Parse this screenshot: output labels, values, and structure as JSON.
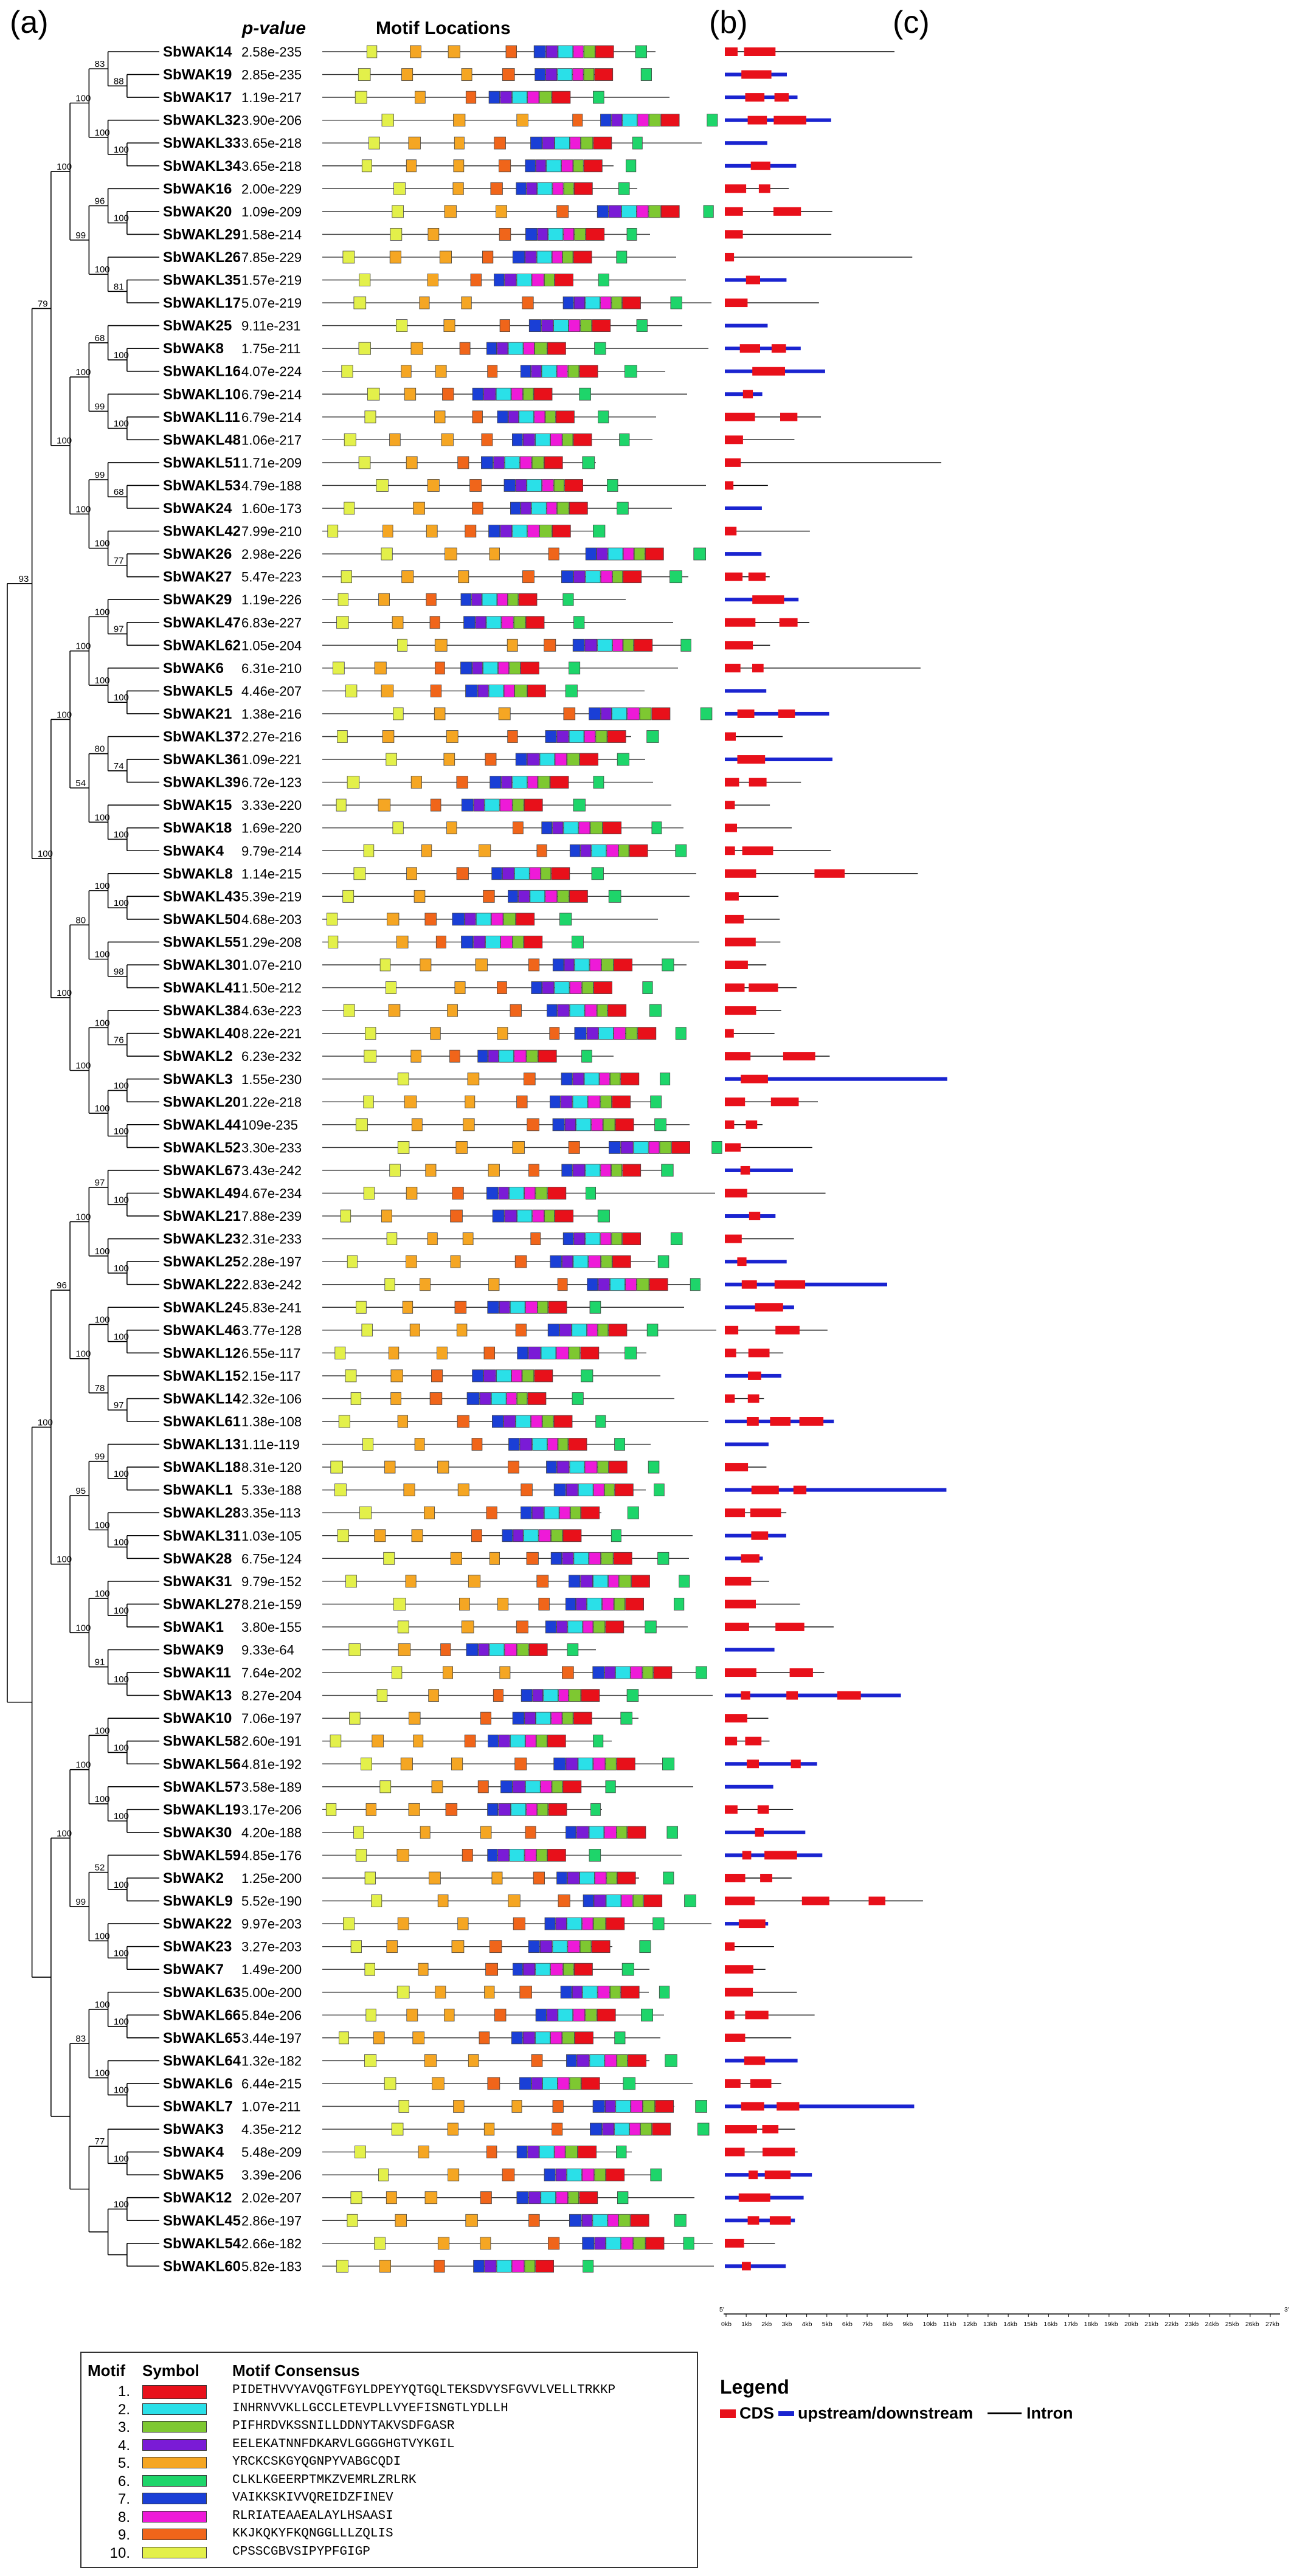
{
  "panel_labels": {
    "a": "(a)",
    "b": "(b)",
    "c": "(c)"
  },
  "headers": {
    "pvalue": "p-value",
    "motif_locations": "Motif Locations"
  },
  "colors": {
    "motifs": [
      "#e8101a",
      "#2ae0e8",
      "#7ec831",
      "#7a1bd6",
      "#f5a623",
      "#1ed56a",
      "#1a3fd6",
      "#ee1ad8",
      "#f0651a",
      "#e3f04a"
    ],
    "cds": "#e8101a",
    "utr": "#1a24d0",
    "intron": "#000000"
  },
  "genes": [
    {
      "name": "SbWAK14",
      "p": "2.58e-235"
    },
    {
      "name": "SbWAK19",
      "p": "2.85e-235"
    },
    {
      "name": "SbWAK17",
      "p": "1.19e-217"
    },
    {
      "name": "SbWAKL32",
      "p": "3.90e-206"
    },
    {
      "name": "SbWAKL33",
      "p": "3.65e-218"
    },
    {
      "name": "SbWAKL34",
      "p": "3.65e-218"
    },
    {
      "name": "SbWAK16",
      "p": "2.00e-229"
    },
    {
      "name": "SbWAK20",
      "p": "1.09e-209"
    },
    {
      "name": "SbWAKL29",
      "p": "1.58e-214"
    },
    {
      "name": "SbWAKL26",
      "p": "7.85e-229"
    },
    {
      "name": "SbWAKL35",
      "p": "1.57e-219"
    },
    {
      "name": "SbWAKL17",
      "p": "5.07e-219"
    },
    {
      "name": "SbWAK25",
      "p": "9.11e-231"
    },
    {
      "name": "SbWAK8",
      "p": "1.75e-211"
    },
    {
      "name": "SbWAKL16",
      "p": "4.07e-224"
    },
    {
      "name": "SbWAKL10",
      "p": "6.79e-214"
    },
    {
      "name": "SbWAKL11",
      "p": "6.79e-214"
    },
    {
      "name": "SbWAKL48",
      "p": "1.06e-217"
    },
    {
      "name": "SbWAKL51",
      "p": "1.71e-209"
    },
    {
      "name": "SbWAKL53",
      "p": "4.79e-188"
    },
    {
      "name": "SbWAK24",
      "p": "1.60e-173"
    },
    {
      "name": "SbWAKL42",
      "p": "7.99e-210"
    },
    {
      "name": "SbWAK26",
      "p": "2.98e-226"
    },
    {
      "name": "SbWAK27",
      "p": "5.47e-223"
    },
    {
      "name": "SbWAK29",
      "p": "1.19e-226"
    },
    {
      "name": "SbWAKL47",
      "p": "6.83e-227"
    },
    {
      "name": "SbWAKL62",
      "p": "1.05e-204"
    },
    {
      "name": "SbWAK6",
      "p": "6.31e-210"
    },
    {
      "name": "SbWAKL5",
      "p": "4.46e-207"
    },
    {
      "name": "SbWAK21",
      "p": "1.38e-216"
    },
    {
      "name": "SbWAKL37",
      "p": "2.27e-216"
    },
    {
      "name": "SbWAKL36",
      "p": "1.09e-221"
    },
    {
      "name": "SbWAKL39",
      "p": "6.72e-123"
    },
    {
      "name": "SbWAK15",
      "p": "3.33e-220"
    },
    {
      "name": "SbWAK18",
      "p": "1.69e-220"
    },
    {
      "name": "SbWAK4",
      "p": "9.79e-214"
    },
    {
      "name": "SbWAKL8",
      "p": "1.14e-215"
    },
    {
      "name": "SbWAKL43",
      "p": "5.39e-219"
    },
    {
      "name": "SbWAKL50",
      "p": "4.68e-203"
    },
    {
      "name": "SbWAKL55",
      "p": "1.29e-208"
    },
    {
      "name": "SbWAKL30",
      "p": "1.07e-210"
    },
    {
      "name": "SbWAKL41",
      "p": "1.50e-212"
    },
    {
      "name": "SbWAKL38",
      "p": "4.63e-223"
    },
    {
      "name": "SbWAKL40",
      "p": "8.22e-221"
    },
    {
      "name": "SbWAKL2",
      "p": "6.23e-232"
    },
    {
      "name": "SbWAKL3",
      "p": "1.55e-230"
    },
    {
      "name": "SbWAKL20",
      "p": "1.22e-218"
    },
    {
      "name": "SbWAKL44",
      "p": "109e-235"
    },
    {
      "name": "SbWAKL52",
      "p": "3.30e-233"
    },
    {
      "name": "SbWAKL67",
      "p": "3.43e-242"
    },
    {
      "name": "SbWAKL49",
      "p": "4.67e-234"
    },
    {
      "name": "SbWAKL21",
      "p": "7.88e-239"
    },
    {
      "name": "SbWAKL23",
      "p": "2.31e-233"
    },
    {
      "name": "SbWAKL25",
      "p": "2.28e-197"
    },
    {
      "name": "SbWAKL22",
      "p": "2.83e-242"
    },
    {
      "name": "SbWAKL24",
      "p": "5.83e-241"
    },
    {
      "name": "SbWAKL46",
      "p": "3.77e-128"
    },
    {
      "name": "SbWAKL12",
      "p": "6.55e-117"
    },
    {
      "name": "SbWAKL15",
      "p": "2.15e-117"
    },
    {
      "name": "SbWAKL14",
      "p": "2.32e-106"
    },
    {
      "name": "SbWAKL61",
      "p": "1.38e-108"
    },
    {
      "name": "SbWAKL13",
      "p": "1.11e-119"
    },
    {
      "name": "SbWAKL18",
      "p": "8.31e-120"
    },
    {
      "name": "SbWAKL1",
      "p": "5.33e-188"
    },
    {
      "name": "SbWAKL28",
      "p": "3.35e-113"
    },
    {
      "name": "SbWAKL31",
      "p": "1.03e-105"
    },
    {
      "name": "SbWAK28",
      "p": "6.75e-124"
    },
    {
      "name": "SbWAK31",
      "p": "9.79e-152"
    },
    {
      "name": "SbWAKL27",
      "p": "8.21e-159"
    },
    {
      "name": "SbWAK1",
      "p": "3.80e-155"
    },
    {
      "name": "SbWAK9",
      "p": "9.33e-64"
    },
    {
      "name": "SbWAK11",
      "p": "7.64e-202"
    },
    {
      "name": "SbWAK13",
      "p": "8.27e-204"
    },
    {
      "name": "SbWAK10",
      "p": "7.06e-197"
    },
    {
      "name": "SbWAKL58",
      "p": "2.60e-191"
    },
    {
      "name": "SbWAKL56",
      "p": "4.81e-192"
    },
    {
      "name": "SbWAKL57",
      "p": "3.58e-189"
    },
    {
      "name": "SbWAKL19",
      "p": "3.17e-206"
    },
    {
      "name": "SbWAK30",
      "p": "4.20e-188"
    },
    {
      "name": "SbWAKL59",
      "p": "4.85e-176"
    },
    {
      "name": "SbWAK2",
      "p": "1.25e-200"
    },
    {
      "name": "SbWAKL9",
      "p": "5.52e-190"
    },
    {
      "name": "SbWAK22",
      "p": "9.97e-203"
    },
    {
      "name": "SbWAK23",
      "p": "3.27e-203"
    },
    {
      "name": "SbWAK7",
      "p": "1.49e-200"
    },
    {
      "name": "SbWAKL63",
      "p": "5.00e-200"
    },
    {
      "name": "SbWAKL66",
      "p": "5.84e-206"
    },
    {
      "name": "SbWAKL65",
      "p": "3.44e-197"
    },
    {
      "name": "SbWAKL64",
      "p": "1.32e-182"
    },
    {
      "name": "SbWAKL6",
      "p": "6.44e-215"
    },
    {
      "name": "SbWAKL7",
      "p": "1.07e-211"
    },
    {
      "name": "SbWAK3",
      "p": "4.35e-212"
    },
    {
      "name": "SbWAK4",
      "p": "5.48e-209"
    },
    {
      "name": "SbWAK5",
      "p": "3.39e-206"
    },
    {
      "name": "SbWAK12",
      "p": "2.02e-207"
    },
    {
      "name": "SbWAKL45",
      "p": "2.86e-197"
    },
    {
      "name": "SbWAKL54",
      "p": "2.66e-182"
    },
    {
      "name": "SbWAKL60",
      "p": "5.82e-183"
    }
  ],
  "bootstrap_values": [
    "88",
    "83",
    "100",
    "100",
    "100",
    "100",
    "96",
    "81",
    "100",
    "99",
    "100",
    "100",
    "68",
    "100",
    "99",
    "100",
    "68",
    "99",
    "77",
    "100",
    "100",
    "100",
    "79",
    "97",
    "100",
    "100",
    "100",
    "100",
    "74",
    "80",
    "100",
    "100",
    "54",
    "100",
    "100",
    "100",
    "98",
    "100",
    "80",
    "76",
    "100",
    "100",
    "100",
    "100",
    "100",
    "100",
    "100",
    "93",
    "100",
    "97",
    "100",
    "100",
    "100",
    "100",
    "100",
    "97",
    "78",
    "100",
    "96",
    "100",
    "99",
    "100",
    "100",
    "95",
    "100",
    "100",
    "100",
    "91",
    "100",
    "100",
    "100",
    "100",
    "100",
    "100",
    "100",
    "100",
    "100",
    "52",
    "100",
    "100",
    "99",
    "100",
    "100",
    "100",
    "100",
    "100",
    "83",
    "100",
    "77",
    "100"
  ],
  "scale": {
    "start": "5'",
    "end": "3'",
    "ticks": [
      "0kb",
      "1kb",
      "2kb",
      "3kb",
      "4kb",
      "5kb",
      "6kb",
      "7kb",
      "8kb",
      "9kb",
      "10kb",
      "11kb",
      "12kb",
      "13kb",
      "14kb",
      "15kb",
      "16kb",
      "17kb",
      "18kb",
      "19kb",
      "20kb",
      "21kb",
      "22kb",
      "23kb",
      "24kb",
      "25kb",
      "26kb",
      "27kb"
    ]
  },
  "motif_legend": {
    "headers": {
      "motif": "Motif",
      "symbol": "Symbol",
      "consensus": "Motif Consensus"
    },
    "rows": [
      {
        "num": "1.",
        "consensus": "PIDETHVVYAVQGTFGYLDPEYYQTGQLTEKSDVYSFGVVLVELLTRKKP"
      },
      {
        "num": "2.",
        "consensus": "INHRNVVKLLGCCLETEVPLLVYEFISNGTLYDLLH"
      },
      {
        "num": "3.",
        "consensus": "PIFHRDVKSSNILLDDNYTAKVSDFGASR"
      },
      {
        "num": "4.",
        "consensus": "EELEKATNNFDKARVLGGGGHGTVYKGIL"
      },
      {
        "num": "5.",
        "consensus": "YRCKCSKGYQGNPYVABGCQDI"
      },
      {
        "num": "6.",
        "consensus": "CLKLKGEERPTMKZVEMRLZRLRK"
      },
      {
        "num": "7.",
        "consensus": "VAIKKSKIVVQREIDZFINEV"
      },
      {
        "num": "8.",
        "consensus": "RLRIATEAAEALAYLHSAASI"
      },
      {
        "num": "9.",
        "consensus": "KKJKQKYFKQNGGLLLZQLIS"
      },
      {
        "num": "10.",
        "consensus": "CPSSCGBVSIPYPFGIGP"
      }
    ]
  },
  "structure_legend": {
    "title": "Legend",
    "cds": "CDS",
    "utr": "upstream/downstream",
    "intron": "Intron"
  }
}
